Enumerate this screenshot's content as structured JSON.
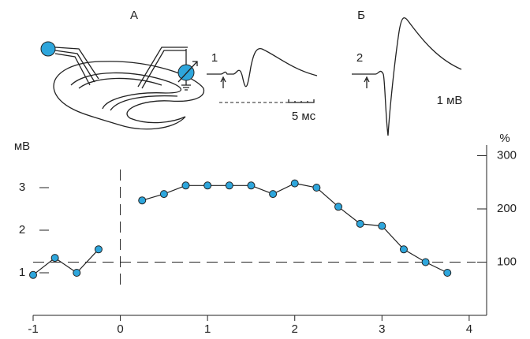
{
  "chart_data": {
    "type": "line",
    "ylabel": "мВ",
    "y2label": "%",
    "x": [
      -1,
      -0.75,
      -0.5,
      -0.25,
      0,
      0.25,
      0.5,
      0.75,
      1,
      1.25,
      1.5,
      1.75,
      2,
      2.25,
      2.5,
      2.75,
      3,
      3.25,
      3.5,
      3.75
    ],
    "series": [
      {
        "name": null,
        "color": "#2ea6dc",
        "values": [
          0.95,
          1.35,
          1.0,
          1.55,
          null,
          2.7,
          2.85,
          3.05,
          3.05,
          3.05,
          3.05,
          2.85,
          3.1,
          3.0,
          2.55,
          2.15,
          2.1,
          1.55,
          1.25,
          1.0
        ]
      }
    ],
    "xlim": [
      -1,
      4.2
    ],
    "xticks": [
      -1,
      0,
      1,
      2,
      3,
      4
    ],
    "ylim": [
      0,
      4
    ],
    "yticks": [
      1,
      2,
      3
    ],
    "y2lim": [
      0,
      320
    ],
    "y2ticks": [
      100,
      200,
      300
    ],
    "reference_y2": 100,
    "reference_x": 0,
    "insets": {
      "a": {
        "label": "А",
        "trace_label": "1",
        "time_scale": "5 мс"
      },
      "b": {
        "label": "Б",
        "trace_label": "2",
        "voltage_scale": "1 мВ"
      }
    }
  }
}
